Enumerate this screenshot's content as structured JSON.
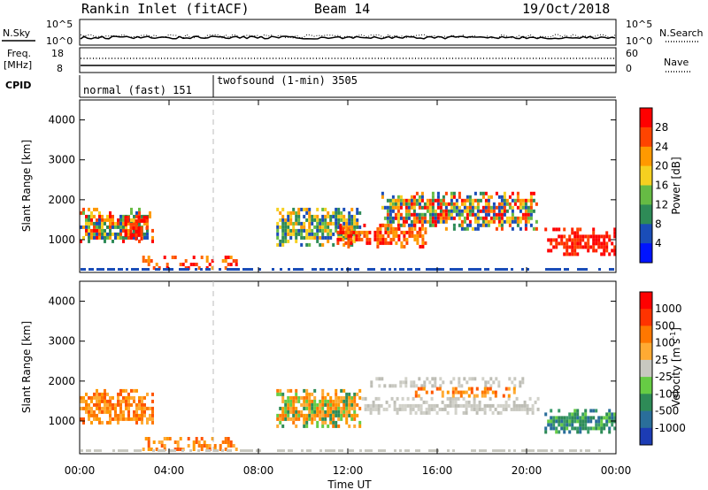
{
  "header": {
    "station": "Rankin Inlet (fitACF)",
    "beam": "Beam 14",
    "date": "19/Oct/2018"
  },
  "aux": {
    "nsky_label": "N.Sky",
    "nsearch_label": "N.Search",
    "freq_label": "Freq.",
    "freq_unit": "[MHz]",
    "nave_label": "Nave",
    "cpid_label": "CPID",
    "noise_ticks": [
      "10^5",
      "10^0"
    ],
    "freq_ticks": [
      "18",
      "8"
    ],
    "nave_ticks": [
      "60",
      "0"
    ],
    "cpid_modes": [
      {
        "label": "normal (fast) 151",
        "start_hour": 0,
        "end_hour": 6
      },
      {
        "label": "twofsound (1-min) 3505",
        "start_hour": 6,
        "end_hour": 24
      }
    ]
  },
  "chart_data": [
    {
      "type": "heatmap",
      "name": "power",
      "xlabel": "Time UT",
      "ylabel": "Slant Range [km]",
      "xlim": [
        0,
        24
      ],
      "ylim": [
        180,
        4500
      ],
      "x_ticks": [
        "00:00",
        "04:00",
        "08:00",
        "12:00",
        "16:00",
        "20:00",
        "00:00"
      ],
      "y_ticks": [
        1000,
        2000,
        3000,
        4000
      ],
      "colorbar": {
        "label": "Power [dB]",
        "range": [
          0,
          32
        ],
        "ticks": [
          4,
          8,
          12,
          16,
          20,
          24,
          28
        ],
        "colors": [
          "#0014ff",
          "#1a4db8",
          "#2e8b57",
          "#66bb44",
          "#f5d020",
          "#ff9900",
          "#ff4400",
          "#ff0000"
        ]
      },
      "regions": [
        {
          "t0": 0.0,
          "t1": 3.3,
          "r0": 950,
          "r1": 1800,
          "level": 18,
          "color_mix": "green-orange-red"
        },
        {
          "t0": 2.0,
          "t1": 3.0,
          "r0": 1000,
          "r1": 1600,
          "level": 26,
          "color_mix": "red"
        },
        {
          "t0": 2.8,
          "t1": 7.0,
          "r0": 300,
          "r1": 600,
          "level": 24,
          "color_mix": "orange-red"
        },
        {
          "t0": 8.8,
          "t1": 12.5,
          "r0": 900,
          "r1": 1800,
          "level": 18,
          "color_mix": "green-orange"
        },
        {
          "t0": 11.5,
          "t1": 15.5,
          "r0": 850,
          "r1": 1400,
          "level": 24,
          "color_mix": "orange-red"
        },
        {
          "t0": 13.5,
          "t1": 20.5,
          "r0": 1300,
          "r1": 2200,
          "level": 20,
          "color_mix": "green-orange-red"
        },
        {
          "t0": 20.8,
          "t1": 24.0,
          "r0": 650,
          "r1": 1300,
          "level": 28,
          "color_mix": "red"
        }
      ]
    },
    {
      "type": "heatmap",
      "name": "velocity",
      "xlabel": "Time UT",
      "ylabel": "Slant Range [km]",
      "xlim": [
        0,
        24
      ],
      "ylim": [
        180,
        4500
      ],
      "x_ticks": [
        "00:00",
        "04:00",
        "08:00",
        "12:00",
        "16:00",
        "20:00",
        "00:00"
      ],
      "y_ticks": [
        1000,
        2000,
        3000,
        4000
      ],
      "colorbar": {
        "label": "Velocity [m s",
        "label_exp": "-1",
        "label_end": "]",
        "ticks": [
          "1000",
          "500",
          "100",
          "25",
          "-25",
          "-100",
          "-500",
          "-1000"
        ],
        "colors": [
          "#1c3cb4",
          "#2a6e9a",
          "#2e8b57",
          "#66cc44",
          "#c8c8c0",
          "#ffaa33",
          "#ff7700",
          "#ff3300",
          "#ff0000"
        ]
      },
      "regions": [
        {
          "t0": 0.0,
          "t1": 3.3,
          "r0": 950,
          "r1": 1800,
          "value": -200,
          "color_mix": "orange"
        },
        {
          "t0": 2.8,
          "t1": 7.0,
          "r0": 300,
          "r1": 600,
          "value": -150,
          "color_mix": "orange"
        },
        {
          "t0": 8.8,
          "t1": 12.5,
          "r0": 900,
          "r1": 1800,
          "value": -250,
          "color_mix": "orange-green"
        },
        {
          "t0": 12.5,
          "t1": 20.5,
          "r0": 1200,
          "r1": 1600,
          "value": 0,
          "color_mix": "grey"
        },
        {
          "t0": 13.0,
          "t1": 20.0,
          "r0": 1900,
          "r1": 2100,
          "value": 0,
          "color_mix": "grey"
        },
        {
          "t0": 15.0,
          "t1": 19.5,
          "r0": 1650,
          "r1": 1850,
          "value": -200,
          "color_mix": "orange"
        },
        {
          "t0": 20.8,
          "t1": 24.0,
          "r0": 700,
          "r1": 1300,
          "value": 300,
          "color_mix": "teal-green"
        }
      ]
    }
  ]
}
